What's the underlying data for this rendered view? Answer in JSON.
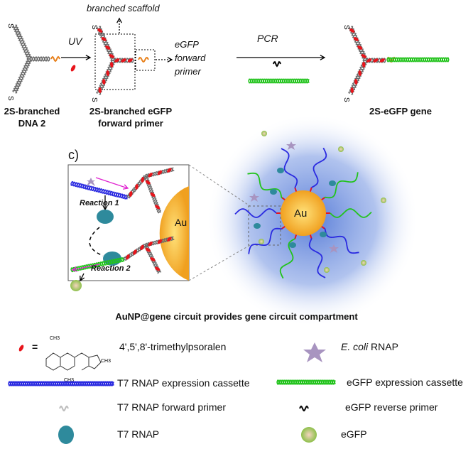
{
  "top": {
    "label_dna2": [
      "2S-branched",
      "DNA 2"
    ],
    "uv": "UV",
    "branched_scaffold": "branched scaffold",
    "forward_primer_note": [
      "eGFP",
      "forward",
      "primer"
    ],
    "label_primer": [
      "2S-branched eGFP",
      "forward primer"
    ],
    "pcr": "PCR",
    "label_gene": "2S-eGFP gene",
    "thiol": "S"
  },
  "panel_c": {
    "label": "c)",
    "reaction1": "Reaction 1",
    "reaction2": "Reaction 2",
    "au": "Au",
    "caption": "AuNP@gene circuit provides gene circuit compartment"
  },
  "legend": {
    "psoralen": "4',5',8'-trimethylpsoralen",
    "equals": "=",
    "ch3": "CH3",
    "ecoli_italic": "E. coli",
    "ecoli_rest": " RNAP",
    "t7_cassette": "T7 RNAP expression cassette",
    "egfp_cassette": "eGFP expression cassette",
    "t7_forward": "T7 RNAP forward primer",
    "egfp_reverse": "eGFP reverse primer",
    "t7_rnap": "T7 RNAP",
    "egfp": "eGFP"
  },
  "colors": {
    "dna_grey": "#6b6b6b",
    "psoralen_red": "#e8141b",
    "primer_orange": "#e8821e",
    "t7_blue": "#2a2ae0",
    "egfp_green": "#22c31c",
    "t7_rnap_teal": "#2e8a9c",
    "ecoli_purple": "#a894c0",
    "gold": "#f5a623",
    "arrow_magenta": "#e020d0"
  }
}
